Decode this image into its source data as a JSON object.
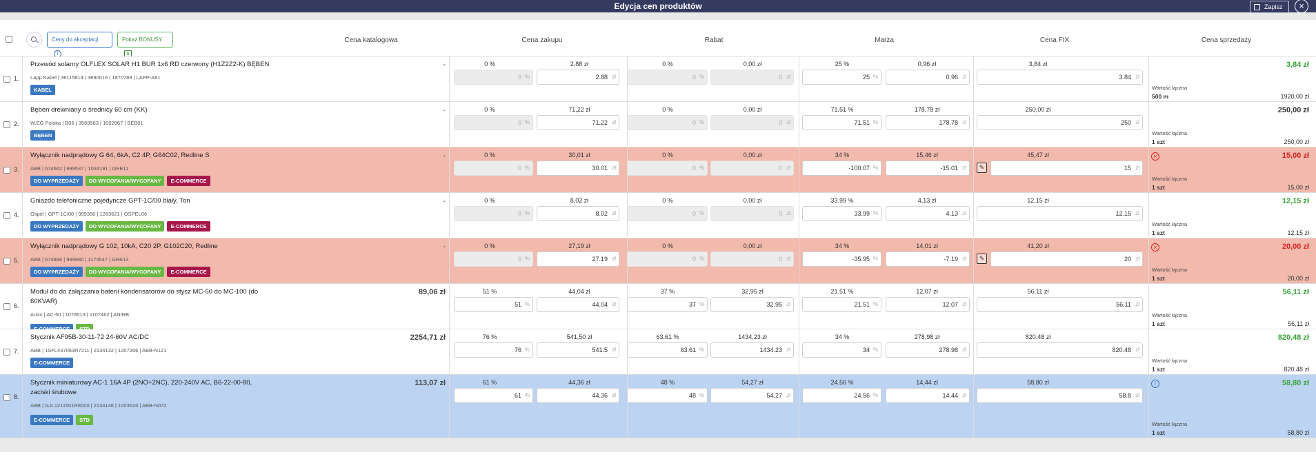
{
  "header": {
    "title": "Edycja cen produktów",
    "save_label": "Zapisz",
    "close_label": "×"
  },
  "toolbar": {
    "pending_label": "Ceny do akceptacji",
    "bonus_label": "Pokaż BONUSY"
  },
  "columns": [
    "Cena katalogowa",
    "Cena zakupu",
    "Rabat",
    "Marża",
    "Cena FIX",
    "Cena sprzedaży"
  ],
  "units": {
    "pct": "%",
    "zl": "zł"
  },
  "value_label": "Wartość łączna",
  "rows": [
    {
      "n": "1.",
      "name": "Przewód solarny OLFLEX SOLAR H1 BUR 1x6 RD czerwony (H1Z2Z2-K) BĘBEN",
      "codes": "Lapp Kabel | 38115814 | 3890016 | 1870789 | LAPP-A61",
      "catalog": "-",
      "a1": "0 %",
      "a2": "2,88 zł",
      "b1": "0 %",
      "b2": "0,00 zł",
      "c1": "25 %",
      "c2": "0,96 zł",
      "d1": "3,84 zł",
      "i1": "0",
      "i2": "2.88",
      "i3": "0",
      "i4": "0",
      "i5": "25",
      "i6": "0.96",
      "i7": "3.84",
      "sale": "3,84 zł",
      "qty": "500 m",
      "total": "1920,00 zł"
    },
    {
      "n": "2.",
      "name": "Bęben drewniany o średnicy 60 cm (KK)",
      "codes": "W.EG Polska | B06 | 3569563 | 1092867 | BEB01",
      "catalog": "-",
      "a1": "0 %",
      "a2": "71,22 zł",
      "b1": "0 %",
      "b2": "0,00 zł",
      "c1": "71.51 %",
      "c2": "178,78 zł",
      "d1": "250,00 zł",
      "i1": "0",
      "i2": "71.22",
      "i3": "0",
      "i4": "0",
      "i5": "71.51",
      "i6": "178.78",
      "i7": "250",
      "sale": "250,00 zł",
      "qty": "1 szt",
      "total": "250,00 zł"
    },
    {
      "n": "3.",
      "name": "Wyłącznik nadprądowy G 64, 6kA, C2 4P, G64C02, Redline S",
      "codes": "ABB | 674662 | 999537 | 1034191 | GEE11",
      "catalog": "-",
      "a1": "0 %",
      "a2": "30,01 zł",
      "b1": "0 %",
      "b2": "0,00 zł",
      "c1": "34 %",
      "c2": "15,46 zł",
      "d1": "45,47 zł",
      "i1": "0",
      "i2": "30.01",
      "i3": "0",
      "i4": "0",
      "i5": "-100.07",
      "i6": "-15.01",
      "i7": "15",
      "sale": "15,00 zł",
      "qty": "1 szt",
      "total": "15,00 zł"
    },
    {
      "n": "4.",
      "name": "Gniazdo telefoniczne pojedyncze GPT-1C/00 biały, Ton",
      "codes": "Ospel | GPT-1C/00 | 999380 | 1283621 | OSPEL06",
      "catalog": "-",
      "a1": "0 %",
      "a2": "8,02 zł",
      "b1": "0 %",
      "b2": "0,00 zł",
      "c1": "33.99 %",
      "c2": "4,13 zł",
      "d1": "12,15 zł",
      "i1": "0",
      "i2": "8.02",
      "i3": "0",
      "i4": "0",
      "i5": "33.99",
      "i6": "4.13",
      "i7": "12.15",
      "sale": "12,15 zł",
      "qty": "1 szt",
      "total": "12,15 zł"
    },
    {
      "n": "5.",
      "name": "Wyłącznik nadprądowy G 102, 10kA, C20 2P, G102C20, Redline",
      "codes": "ABB | 674896 | 999980 | 1174547 | GEE13",
      "catalog": "-",
      "a1": "0 %",
      "a2": "27,19 zł",
      "b1": "0 %",
      "b2": "0,00 zł",
      "c1": "34 %",
      "c2": "14,01 zł",
      "d1": "41,20 zł",
      "i1": "0",
      "i2": "27.19",
      "i3": "0",
      "i4": "0",
      "i5": "-35.95",
      "i6": "-7.19",
      "i7": "20",
      "sale": "20,00 zł",
      "qty": "1 szt",
      "total": "20,00 zł"
    },
    {
      "n": "6.",
      "name": "Moduł do do załączania baterii kondensatorów do stycz MC-50 do MC-100 (do 60KVAR)",
      "codes": "Aniro | AC-50 | 1078513 | 1107462 | ANIRB",
      "catalog": "89,06 zł",
      "a1": "51 %",
      "a2": "44,04 zł",
      "b1": "37 %",
      "b2": "32,95 zł",
      "c1": "21.51 %",
      "c2": "12,07 zł",
      "d1": "56,11 zł",
      "i1": "51",
      "i2": "44.04",
      "i3": "37",
      "i4": "32.95",
      "i5": "21.51",
      "i6": "12.07",
      "i7": "56.11",
      "sale": "56,11 zł",
      "qty": "1 szt",
      "total": "56,11 zł"
    },
    {
      "n": "7.",
      "name": "Stycznik AF95B-30-11-72 24-60V AC/DC",
      "codes": "ABB | 1SFL437063R7211 | 2134132 | 1207266 | ABB-N121",
      "catalog": "2254,71 zł",
      "a1": "76 %",
      "a2": "541,50 zł",
      "b1": "63.61 %",
      "b2": "1434,23 zł",
      "c1": "34 %",
      "c2": "278,98 zł",
      "d1": "820,48 zł",
      "i1": "76",
      "i2": "541.5",
      "i3": "63.61",
      "i4": "1434.23",
      "i5": "34",
      "i6": "278.98",
      "i7": "820.48",
      "sale": "820,48 zł",
      "qty": "1 szt",
      "total": "820,48 zł"
    },
    {
      "n": "8.",
      "name": "Stycznik miniaturowy AC-1 16A 4P (2NO+2NC), 220-240V AC, B6-22-00-80, zaciski śrubowe",
      "codes": "ABB | GJL1211501R8000 | 2134146 | 1003516 | ABB-N072",
      "catalog": "113,07 zł",
      "a1": "61 %",
      "a2": "44,36 zł",
      "b1": "48 %",
      "b2": "54,27 zł",
      "c1": "24.56 %",
      "c2": "14,44 zł",
      "d1": "58,80 zł",
      "i1": "61",
      "i2": "44.36",
      "i3": "48",
      "i4": "54.27",
      "i5": "24.56",
      "i6": "14.44",
      "i7": "58.8",
      "sale": "58,80 zł",
      "qty": "1 szt",
      "total": "58,80 zł"
    }
  ],
  "tags": {
    "kabel": "KABEL",
    "beben": "BĘBEN",
    "wyp": "DO WYPRZEDAŻY",
    "wyc": "DO WYCOFANIA/WYCOFANY",
    "ecom": "E-COMMERCE",
    "std": "STD"
  }
}
